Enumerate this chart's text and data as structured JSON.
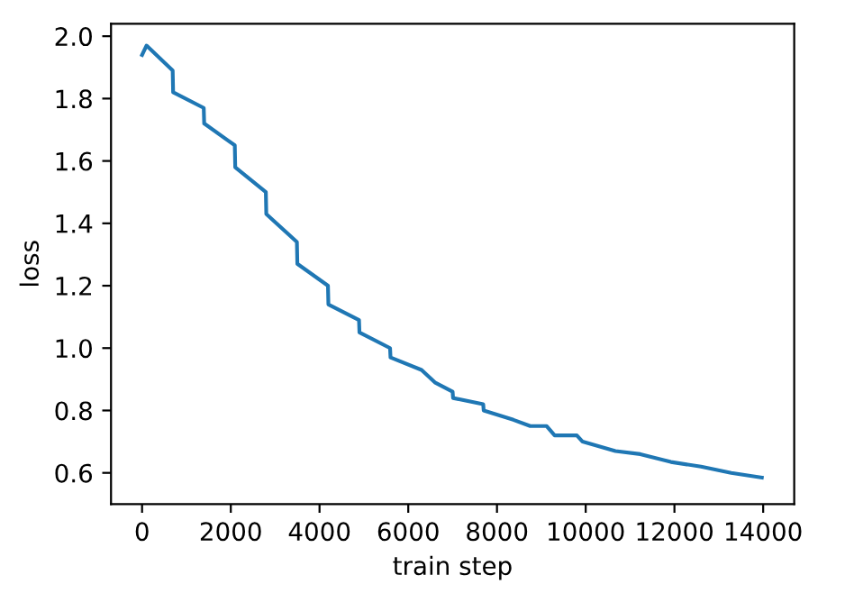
{
  "chart_data": {
    "type": "line",
    "xlabel": "train step",
    "ylabel": "loss",
    "series": [
      {
        "color": "#1f77b4",
        "x": [
          0,
          100,
          690,
          700,
          1390,
          1400,
          2090,
          2100,
          2790,
          2800,
          3490,
          3500,
          4190,
          4200,
          4890,
          4900,
          5590,
          5600,
          6300,
          6600,
          7000,
          7010,
          7690,
          7700,
          8370,
          8750,
          9120,
          9300,
          9800,
          9930,
          10670,
          11230,
          11920,
          12600,
          13280,
          13970
        ],
        "values": [
          1.94,
          1.97,
          1.89,
          1.82,
          1.77,
          1.72,
          1.65,
          1.58,
          1.5,
          1.43,
          1.34,
          1.27,
          1.2,
          1.14,
          1.09,
          1.05,
          1.0,
          0.97,
          0.93,
          0.89,
          0.86,
          0.84,
          0.82,
          0.8,
          0.77,
          0.75,
          0.75,
          0.72,
          0.72,
          0.7,
          0.67,
          0.66,
          0.635,
          0.62,
          0.6,
          0.585
        ]
      }
    ],
    "xlim": [
      -700,
      14700
    ],
    "ylim": [
      0.5,
      2.04
    ],
    "xticks": [
      0,
      2000,
      4000,
      6000,
      8000,
      10000,
      12000,
      14000
    ],
    "yticks": [
      {
        "value": 0.6,
        "label": "0.6"
      },
      {
        "value": 0.8,
        "label": "0.8"
      },
      {
        "value": 1.0,
        "label": "1.0"
      },
      {
        "value": 1.2,
        "label": "1.2"
      },
      {
        "value": 1.4,
        "label": "1.4"
      },
      {
        "value": 1.6,
        "label": "1.6"
      },
      {
        "value": 1.8,
        "label": "1.8"
      },
      {
        "value": 2.0,
        "label": "2.0"
      }
    ],
    "grid": false
  }
}
